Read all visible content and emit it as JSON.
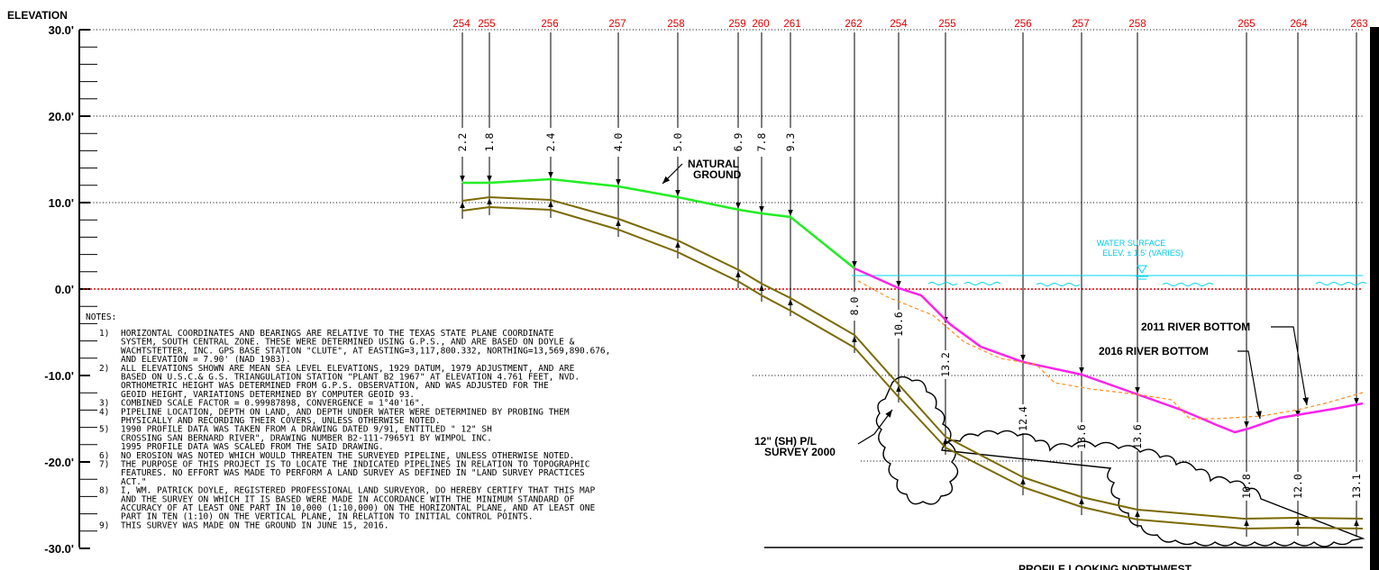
{
  "axis": {
    "title": "ELEVATION",
    "ticks": [
      {
        "label": "30.0'",
        "value": 30
      },
      {
        "label": "20.0'",
        "value": 20
      },
      {
        "label": "10.0'",
        "value": 10
      },
      {
        "label": "0.0'",
        "value": 0
      },
      {
        "label": "-10.0'",
        "value": -10
      },
      {
        "label": "-20.0'",
        "value": -20
      },
      {
        "label": "-30.0'",
        "value": -30
      }
    ]
  },
  "stations": [
    "254",
    "255",
    "256",
    "257",
    "258",
    "259",
    "260",
    "261",
    "262",
    "254",
    "255",
    "256",
    "257",
    "258",
    "265",
    "264",
    "263"
  ],
  "depths": [
    "2.2",
    "1.8",
    "2.4",
    "4.0",
    "5.0",
    "6.9",
    "7.8",
    "9.3",
    "8.0",
    "10.6",
    "13.2",
    "12.4",
    "13.6",
    "13.6",
    "10.8",
    "12.0",
    "13.1"
  ],
  "labels": {
    "natural_ground": [
      "NATURAL",
      "GROUND"
    ],
    "water_surface": [
      "WATER SURFACE",
      "ELEV. ± 1.5' (VARIES)"
    ],
    "river_2011": "2011 RIVER BOTTOM",
    "river_2016": "2016 RIVER BOTTOM",
    "pipeline": [
      "12\" (SH) P/L",
      "SURVEY 2000"
    ],
    "profile_title": "PROFILE LOOKING NORTHWEST"
  },
  "notes": {
    "heading": "NOTES:",
    "items": [
      {
        "num": "1)",
        "lines": [
          "HORIZONTAL COORDINATES AND BEARINGS ARE RELATIVE TO THE TEXAS STATE PLANE COORDINATE",
          "SYSTEM, SOUTH CENTRAL ZONE.  THESE WERE DETERMINED USING G.P.S., AND ARE BASED ON DOYLE &",
          "WACHTSTETTER, INC. GPS BASE STATION \"CLUTE\", AT EASTING=3,117,800.332, NORTHING=13,569,890.676,",
          "AND ELEVATION = 7.90' (NAD 1983)."
        ]
      },
      {
        "num": "2)",
        "lines": [
          "ALL ELEVATIONS SHOWN ARE MEAN SEA LEVEL ELEVATIONS, 1929 DATUM, 1979 ADJUSTMENT, AND ARE",
          "BASED ON U.S.C.& G.S. TRIANGULATION STATION \"PLANT B2 1967\" AT ELEVATION 4.761 FEET, NVD.",
          "ORTHOMETRIC HEIGHT WAS DETERMINED FROM G.P.S. OBSERVATION, AND WAS ADJUSTED FOR THE",
          "GEOID HEIGHT, VARIATIONS DETERMINED BY COMPUTER GEOID 93."
        ]
      },
      {
        "num": "3)",
        "lines": [
          "COMBINED SCALE FACTOR = 0.99987898, CONVERGENCE = 1°40'16\"."
        ]
      },
      {
        "num": "4)",
        "lines": [
          "PIPELINE LOCATION, DEPTH ON LAND, AND DEPTH UNDER WATER WERE DETERMINED BY PROBING THEM",
          "PHYSICALLY AND RECORDING THEIR COVERS, UNLESS OTHERWISE NOTED."
        ]
      },
      {
        "num": "5)",
        "lines": [
          "1990 PROFILE DATA WAS TAKEN FROM A DRAWING DATED 9/91,  ENTITLED \" 12\" SH",
          "CROSSING SAN BERNARD RIVER\",  DRAWING NUMBER B2-111-7965Y1 BY WIMPOL INC.",
          "1995 PROFILE DATA WAS SCALED FROM THE SAID DRAWING."
        ]
      },
      {
        "num": "6)",
        "lines": [
          "NO EROSION WAS NOTED WHICH WOULD THREATEN THE SURVEYED PIPELINE, UNLESS OTHERWISE NOTED."
        ]
      },
      {
        "num": "7)",
        "lines": [
          "THE PURPOSE OF THIS PROJECT IS TO LOCATE THE INDICATED PIPELINES IN RELATION TO TOPOGRAPHIC",
          "FEATURES.  NO EFFORT WAS MADE TO PERFORM A LAND SURVEY AS DEFINED IN \"LAND SURVEY PRACTICES",
          "ACT.\""
        ]
      },
      {
        "num": "8)",
        "lines": [
          "I, WM. PATRICK DOYLE, REGISTERED PROFESSIONAL LAND SURVEYOR, DO HEREBY CERTIFY THAT THIS MAP",
          "AND THE SURVEY ON WHICH IT IS BASED WERE MADE IN ACCORDANCE WITH THE MINIMUM STANDARD OF",
          "ACCURACY OF AT LEAST ONE PART IN 10,000 (1:10,000) ON THE HORIZONTAL PLANE, AND AT LEAST ONE",
          "PART IN TEN (1:10) ON THE VERTICAL PLANE, IN RELATION TO INITIAL CONTROL POINTS."
        ]
      },
      {
        "num": "9)",
        "lines": [
          "THIS SURVEY WAS MADE ON THE GROUND IN JUNE 15, 2016."
        ]
      }
    ]
  },
  "colors": {
    "ground": "#22ee22",
    "river_2016": "#ff22ee",
    "river_2011": "#ff8c1a",
    "water": "#00d6ee",
    "pipe": "#7a6a00",
    "station": "#e00000",
    "datum": "#e00000"
  }
}
